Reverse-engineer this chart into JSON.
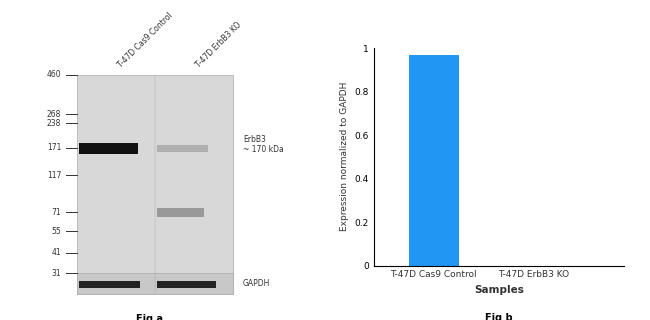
{
  "fig_a": {
    "title": "Fig a",
    "lane_labels": [
      "T-47D Cas9 Control",
      "T-47D ErbB3 KO"
    ],
    "mw_markers": [
      460,
      268,
      238,
      171,
      117,
      71,
      55,
      41,
      31
    ],
    "band_label_erbb3": "ErbB3\n~ 170 kDa",
    "band_label_gapdh": "GAPDH",
    "gel_color": "#d8d8d8",
    "band_color_dark": "#1a1a1a",
    "band_color_light": "#888888"
  },
  "fig_b": {
    "title": "Fig b",
    "categories": [
      "T-47D Cas9 Control",
      "T-47D ErbB3 KO"
    ],
    "values": [
      0.97,
      0.0
    ],
    "bar_color": "#2196f3",
    "xlabel": "Samples",
    "ylabel": "Expression normalized to GAPDH",
    "ylim": [
      0,
      1.0
    ],
    "yticks": [
      0,
      0.2,
      0.4,
      0.6,
      0.8,
      1
    ]
  },
  "background_color": "#ffffff"
}
